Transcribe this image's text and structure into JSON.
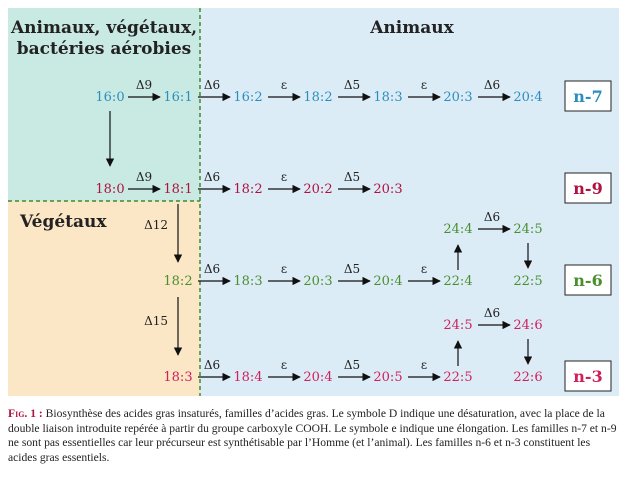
{
  "colors": {
    "n7": "#2a8fbd",
    "n9": "#b0123f",
    "n6": "#4a8f2e",
    "n3": "#d01f5c",
    "region_aerobic": "#c9e9e3",
    "region_animal": "#dcecf7",
    "region_plant": "#fbe6c5",
    "divider": "#3f8a2e"
  },
  "regions": {
    "aerobic_title_1": "Animaux, végétaux,",
    "aerobic_title_2": "bactéries aérobies",
    "animal_title": "Animaux",
    "plant_title": "Végétaux"
  },
  "families": {
    "n7": "n-7",
    "n9": "n-9",
    "n6": "n-6",
    "n3": "n-3"
  },
  "nodes": {
    "r1": [
      "16:0",
      "16:1",
      "16:2",
      "18:2",
      "18:3",
      "20:3",
      "20:4"
    ],
    "r2": [
      "18:0",
      "18:1",
      "18:2",
      "20:2",
      "20:3"
    ],
    "r3": [
      "18:2",
      "18:3",
      "20:3",
      "20:4",
      "22:4",
      "24:4",
      "24:5",
      "22:5"
    ],
    "r4": [
      "18:3",
      "18:4",
      "20:4",
      "20:5",
      "22:5",
      "24:5",
      "24:6",
      "22:6"
    ]
  },
  "labels": {
    "d9": "Δ9",
    "d6": "Δ6",
    "d5": "Δ5",
    "d12": "Δ12",
    "d15": "Δ15",
    "eps": "ε"
  },
  "caption": {
    "lead": "Fig. 1 :",
    "text": " Biosynthèse des acides gras insaturés, familles d’acides gras. Le symbole D indique une désaturation, avec la place de la double liaison introduite repérée à partir du groupe carboxyle COOH. Le symbole e indique une élongation. Les familles n-7 et n-9 ne sont pas essentielles car leur précurseur est synthétisable par l’Homme (et l’animal). Les familles n-6 et n-3 constituent les acides gras essentiels."
  }
}
